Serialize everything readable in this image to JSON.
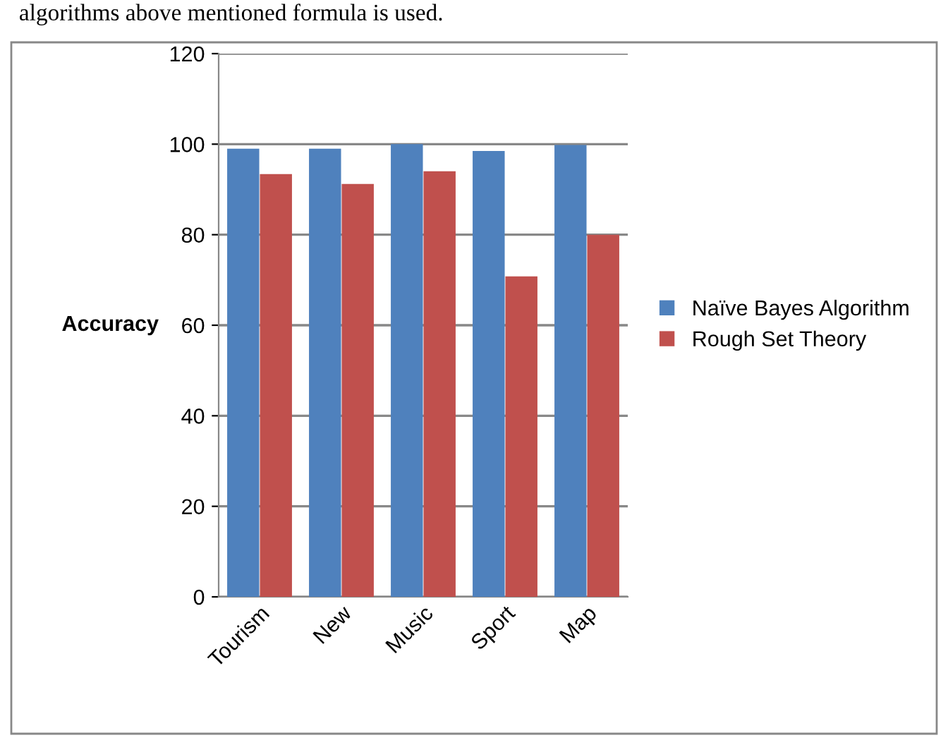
{
  "chart_data": {
    "type": "bar",
    "ylabel": "Accuracy",
    "categories": [
      "Tourism",
      "New",
      "Music",
      "Sport",
      "Map"
    ],
    "series": [
      {
        "name": "Naïve Bayes Algorithm",
        "color": "#4f81bd",
        "values": [
          99,
          99,
          100,
          98.5,
          99.8
        ]
      },
      {
        "name": "Rough Set Theory",
        "color": "#c0504d",
        "values": [
          93.4,
          91.2,
          94,
          70.8,
          80
        ]
      }
    ],
    "ylim": [
      0,
      120
    ],
    "yticks": [
      0,
      20,
      40,
      60,
      80,
      100,
      120
    ],
    "grid": "y",
    "legend": "right",
    "annotations": [
      "algorithms above mentioned formula is used."
    ]
  }
}
